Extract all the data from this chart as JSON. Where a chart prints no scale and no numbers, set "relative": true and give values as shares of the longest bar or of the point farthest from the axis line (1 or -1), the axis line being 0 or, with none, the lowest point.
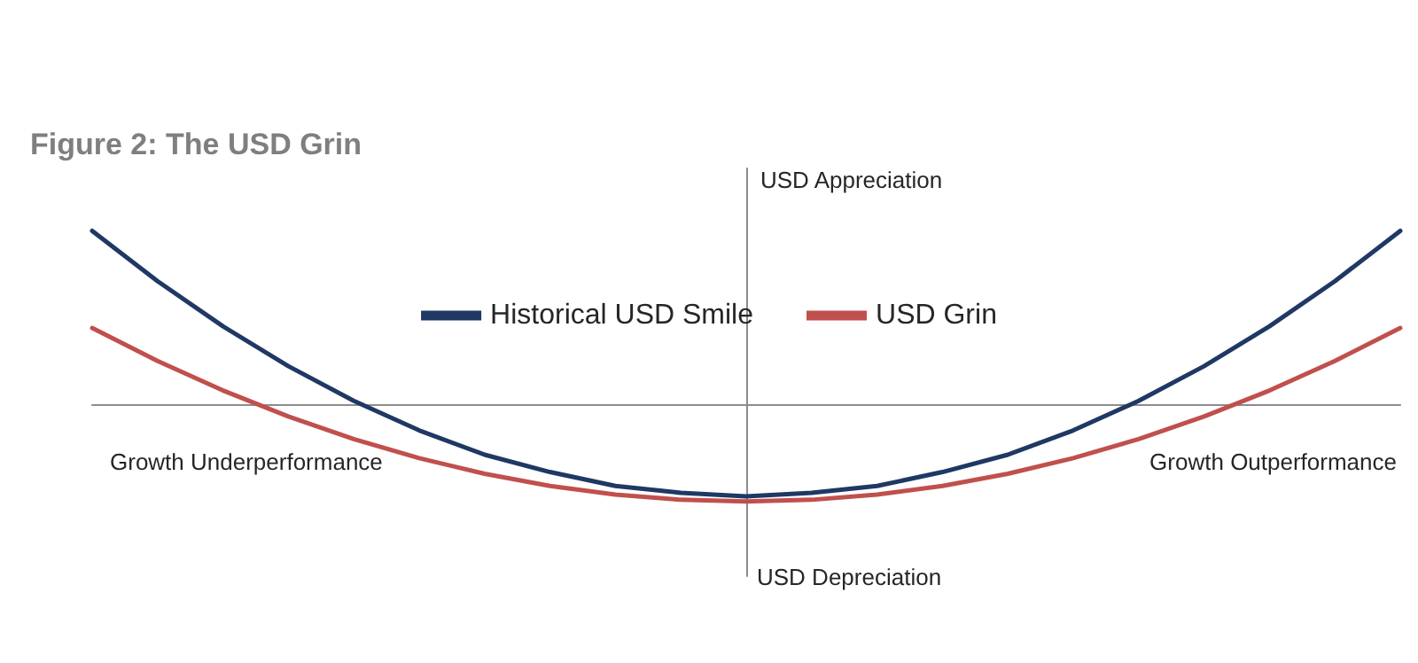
{
  "chart_data": {
    "type": "line",
    "title": "Figure 2: The USD Grin",
    "relative": true,
    "legend": "top",
    "marker": "none",
    "line_style": "solid",
    "grid": false,
    "categories": [
      null,
      null,
      null,
      null,
      null,
      null,
      null,
      null,
      null,
      null,
      null,
      null,
      null,
      null,
      null,
      null,
      null,
      null,
      null,
      null,
      null
    ],
    "series": [
      {
        "name": "Historical USD Smile",
        "color": "#1f3864",
        "values": [
          1.0,
          0.71,
          0.45,
          0.22,
          0.02,
          -0.15,
          -0.29,
          -0.39,
          -0.47,
          -0.51,
          -0.53,
          -0.51,
          -0.47,
          -0.39,
          -0.29,
          -0.15,
          0.02,
          0.22,
          0.45,
          0.71,
          1.0
        ]
      },
      {
        "name": "USD Grin",
        "color": "#c0504d",
        "values": [
          0.44,
          0.25,
          0.08,
          -0.07,
          -0.2,
          -0.31,
          -0.4,
          -0.47,
          -0.52,
          -0.55,
          -0.56,
          -0.55,
          -0.52,
          -0.47,
          -0.4,
          -0.31,
          -0.2,
          -0.07,
          0.08,
          0.25,
          0.44
        ]
      }
    ],
    "annotations": [
      "USD Appreciation",
      "USD Depreciation",
      "Growth Underperformance",
      "Growth Outperformance"
    ]
  }
}
